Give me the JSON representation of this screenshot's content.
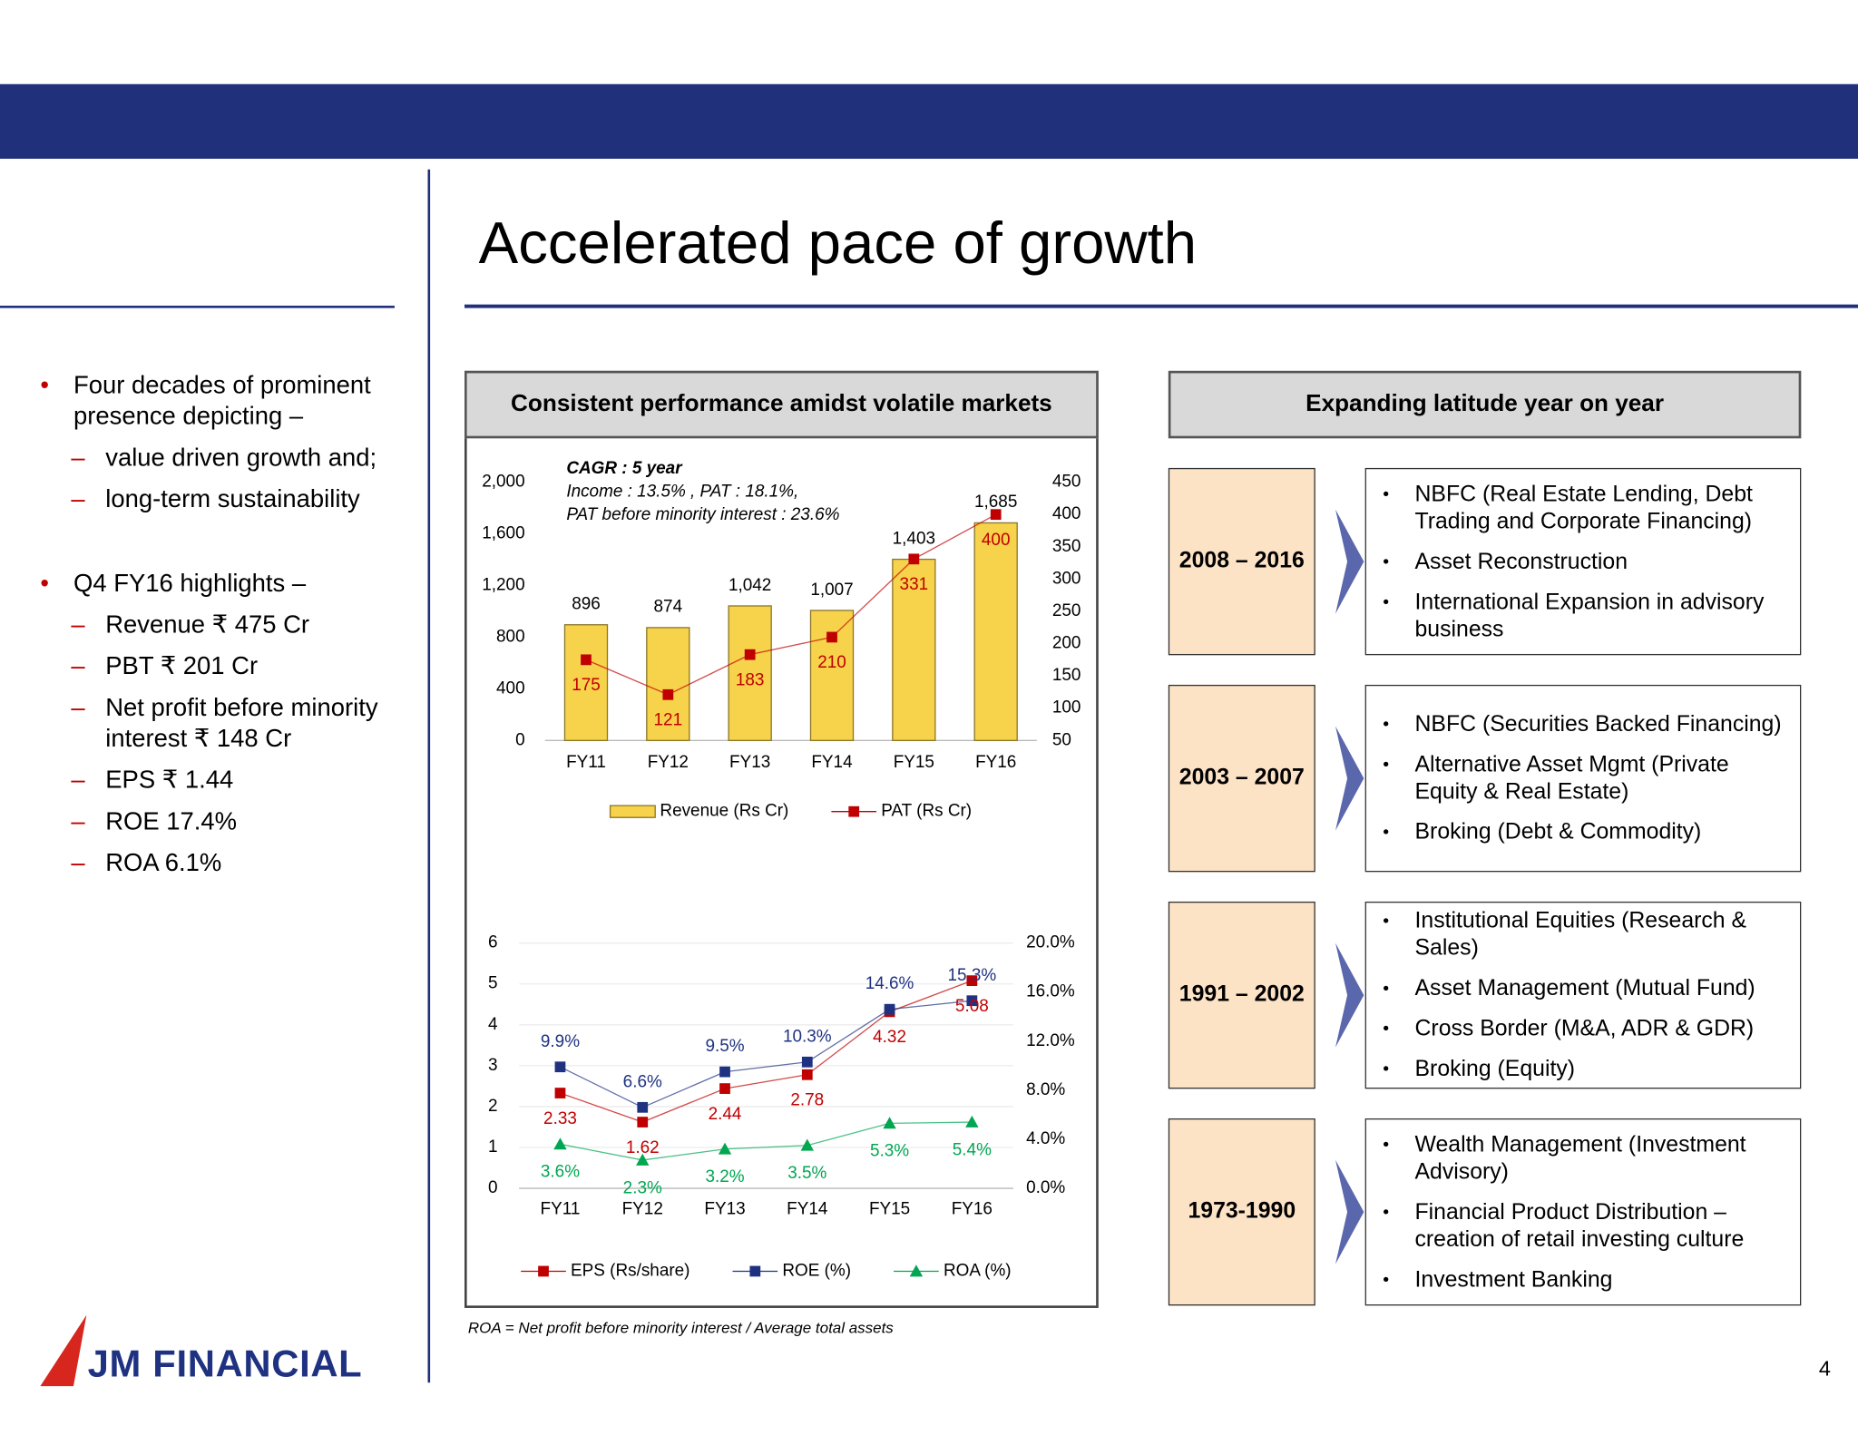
{
  "header": {
    "title": "Accelerated pace of growth"
  },
  "sidebar": {
    "bullets": [
      {
        "text": "Four decades of prominent presence depicting –",
        "items": [
          "value driven growth and;",
          "long-term sustainability"
        ]
      },
      {
        "text": "Q4 FY16 highlights –",
        "items": [
          "Revenue ₹ 475 Cr",
          "PBT ₹ 201 Cr",
          "Net profit before minority interest ₹ 148 Cr",
          "EPS ₹ 1.44",
          "ROE 17.4%",
          "ROA 6.1%"
        ]
      }
    ]
  },
  "chart_panel": {
    "title": "Consistent performance amidst volatile markets",
    "footnote": "ROA = Net profit before minority interest /  Average total assets"
  },
  "chart_data": [
    {
      "type": "combo",
      "annotations": [
        "CAGR : 5 year",
        "Income : 13.5% , PAT : 18.1%,",
        "PAT before minority interest : 23.6%"
      ],
      "categories": [
        "FY11",
        "FY12",
        "FY13",
        "FY14",
        "FY15",
        "FY16"
      ],
      "series": [
        {
          "name": "Revenue (Rs Cr)",
          "type": "bar",
          "color": "#f7d24b",
          "values": [
            896,
            874,
            1042,
            1007,
            1403,
            1685
          ],
          "value_labels": [
            "896",
            "874",
            "1,042",
            "1,007",
            "1,403",
            "1,685"
          ]
        },
        {
          "name": "PAT (Rs Cr)",
          "type": "line",
          "axis": "y2",
          "color": "#c00000",
          "marker": "square",
          "values": [
            175,
            121,
            183,
            210,
            331,
            400
          ]
        }
      ],
      "ylim": [
        0,
        2000
      ],
      "yticks": [
        0,
        400,
        800,
        {
          "value": 1200,
          "label": "1,200"
        },
        {
          "value": 1600,
          "label": "1,600"
        },
        {
          "value": 2000,
          "label": "2,000"
        }
      ],
      "y2lim": [
        50,
        450
      ],
      "y2ticks": [
        50,
        100,
        150,
        200,
        250,
        300,
        350,
        400,
        450
      ],
      "grid": false,
      "legend": "bottom"
    },
    {
      "type": "line",
      "categories": [
        "FY11",
        "FY12",
        "FY13",
        "FY14",
        "FY15",
        "FY16"
      ],
      "series": [
        {
          "name": "EPS (Rs/share)",
          "type": "line",
          "color": "#c00000",
          "marker": "square",
          "values": [
            2.33,
            1.62,
            2.44,
            2.78,
            4.32,
            5.08
          ]
        },
        {
          "name": "ROE (%)",
          "type": "line",
          "axis": "y2",
          "color": "#1f3282",
          "marker": "square",
          "values": [
            9.9,
            6.6,
            9.5,
            10.3,
            14.6,
            15.3
          ],
          "value_labels": [
            "9.9%",
            "6.6%",
            "9.5%",
            "10.3%",
            "14.6%",
            "15.3%"
          ]
        },
        {
          "name": "ROA (%)",
          "type": "line",
          "axis": "y2",
          "color": "#00a651",
          "marker": "triangle",
          "values": [
            3.6,
            2.3,
            3.2,
            3.5,
            5.3,
            5.4
          ],
          "value_labels": [
            "3.6%",
            "2.3%",
            "3.2%",
            "3.5%",
            "5.3%",
            "5.4%"
          ]
        }
      ],
      "ylim": [
        0,
        6
      ],
      "yticks": [
        0,
        1,
        2,
        3,
        4,
        5,
        6
      ],
      "y2lim": [
        0,
        20
      ],
      "y2ticks": [
        {
          "value": 0,
          "label": "0.0%"
        },
        {
          "value": 4,
          "label": "4.0%"
        },
        {
          "value": 8,
          "label": "8.0%"
        },
        {
          "value": 12,
          "label": "12.0%"
        },
        {
          "value": 16,
          "label": "16.0%"
        },
        {
          "value": 20,
          "label": "20.0%"
        }
      ],
      "grid": true,
      "legend": "bottom"
    }
  ],
  "timeline": {
    "title": "Expanding latitude year on year",
    "periods": [
      {
        "years": "2008 – 2016",
        "items": [
          "NBFC (Real Estate Lending, Debt Trading and Corporate Financing)",
          "Asset Reconstruction",
          "International Expansion in advisory business"
        ]
      },
      {
        "years": "2003 – 2007",
        "items": [
          "NBFC (Securities Backed Financing)",
          "Alternative Asset Mgmt (Private Equity & Real Estate)",
          "Broking (Debt & Commodity)"
        ]
      },
      {
        "years": "1991 – 2002",
        "items": [
          "Institutional Equities (Research & Sales)",
          "Asset Management (Mutual Fund)",
          "Cross Border (M&A, ADR & GDR)",
          "Broking (Equity)"
        ]
      },
      {
        "years": "1973-1990",
        "items": [
          "Wealth Management (Investment Advisory)",
          "Financial Product Distribution – creation of retail investing culture",
          "Investment Banking"
        ]
      }
    ]
  },
  "logo": {
    "text": "JM FINANCIAL"
  },
  "page_number": 4
}
